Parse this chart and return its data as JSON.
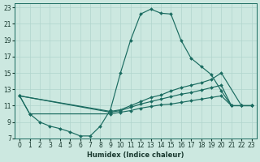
{
  "xlabel": "Humidex (Indice chaleur)",
  "xlim": [
    -0.5,
    23.5
  ],
  "ylim": [
    7,
    23.5
  ],
  "xticks": [
    0,
    1,
    2,
    3,
    4,
    5,
    6,
    7,
    8,
    9,
    10,
    11,
    12,
    13,
    14,
    15,
    16,
    17,
    18,
    19,
    20,
    21,
    22,
    23
  ],
  "yticks": [
    7,
    9,
    11,
    13,
    15,
    17,
    19,
    21,
    23
  ],
  "bg_color": "#cce8e0",
  "line_color": "#1a6b60",
  "grid_color": "#b0d4cc",
  "figsize": [
    3.2,
    2.0
  ],
  "dpi": 100,
  "lines": [
    {
      "x": [
        0,
        1,
        2,
        3,
        4,
        5,
        6,
        7,
        8,
        9,
        10,
        11,
        12,
        13,
        14,
        15,
        16,
        17,
        18,
        19,
        20,
        21,
        22,
        23
      ],
      "y": [
        12.2,
        10.0,
        9.0,
        8.5,
        8.2,
        7.8,
        7.3,
        7.3,
        8.5,
        10.5,
        15.0,
        19.0,
        22.2,
        22.8,
        22.3,
        22.2,
        19.0,
        16.8,
        15.8,
        14.8,
        12.8,
        11.0,
        11.0,
        11.0
      ]
    },
    {
      "x": [
        0,
        9,
        10,
        11,
        12,
        13,
        14,
        15,
        16,
        17,
        18,
        19,
        20,
        22,
        23
      ],
      "y": [
        12.2,
        10.3,
        10.5,
        11.0,
        11.5,
        12.0,
        12.3,
        12.8,
        13.2,
        13.5,
        13.8,
        14.2,
        15.0,
        11.0,
        11.0
      ]
    },
    {
      "x": [
        0,
        9,
        10,
        11,
        12,
        13,
        14,
        15,
        16,
        17,
        18,
        19,
        20,
        21,
        22,
        23
      ],
      "y": [
        12.2,
        10.2,
        10.4,
        10.8,
        11.2,
        11.5,
        11.8,
        12.1,
        12.4,
        12.6,
        12.9,
        13.2,
        13.5,
        11.0,
        11.0,
        11.0
      ]
    },
    {
      "x": [
        0,
        1,
        9,
        10,
        11,
        12,
        13,
        14,
        15,
        16,
        17,
        18,
        19,
        20,
        21,
        22,
        23
      ],
      "y": [
        12.2,
        10.0,
        10.0,
        10.2,
        10.4,
        10.7,
        10.9,
        11.1,
        11.2,
        11.4,
        11.6,
        11.8,
        12.0,
        12.2,
        11.0,
        11.0,
        11.0
      ]
    }
  ]
}
